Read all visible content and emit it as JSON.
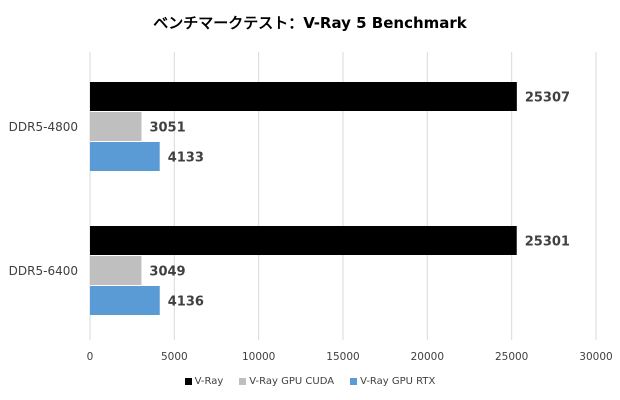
{
  "chart_data": {
    "type": "bar",
    "orientation": "horizontal",
    "title": "ベンチマークテスト：V-Ray 5 Benchmark",
    "categories": [
      "DDR5-4800",
      "DDR5-6400"
    ],
    "series": [
      {
        "name": "V-Ray",
        "color": "#000000",
        "values": [
          25307,
          25301
        ]
      },
      {
        "name": "V-Ray GPU CUDA",
        "color": "#bfbfbf",
        "values": [
          3051,
          3049
        ]
      },
      {
        "name": "V-Ray GPU RTX",
        "color": "#5b9bd5",
        "values": [
          4133,
          4136
        ]
      }
    ],
    "xlim": [
      0,
      30000
    ],
    "xticks": [
      "0",
      "5000",
      "10000",
      "15000",
      "20000",
      "25000",
      "30000"
    ],
    "grid": true,
    "data_labels": true,
    "legend_position": "bottom"
  }
}
